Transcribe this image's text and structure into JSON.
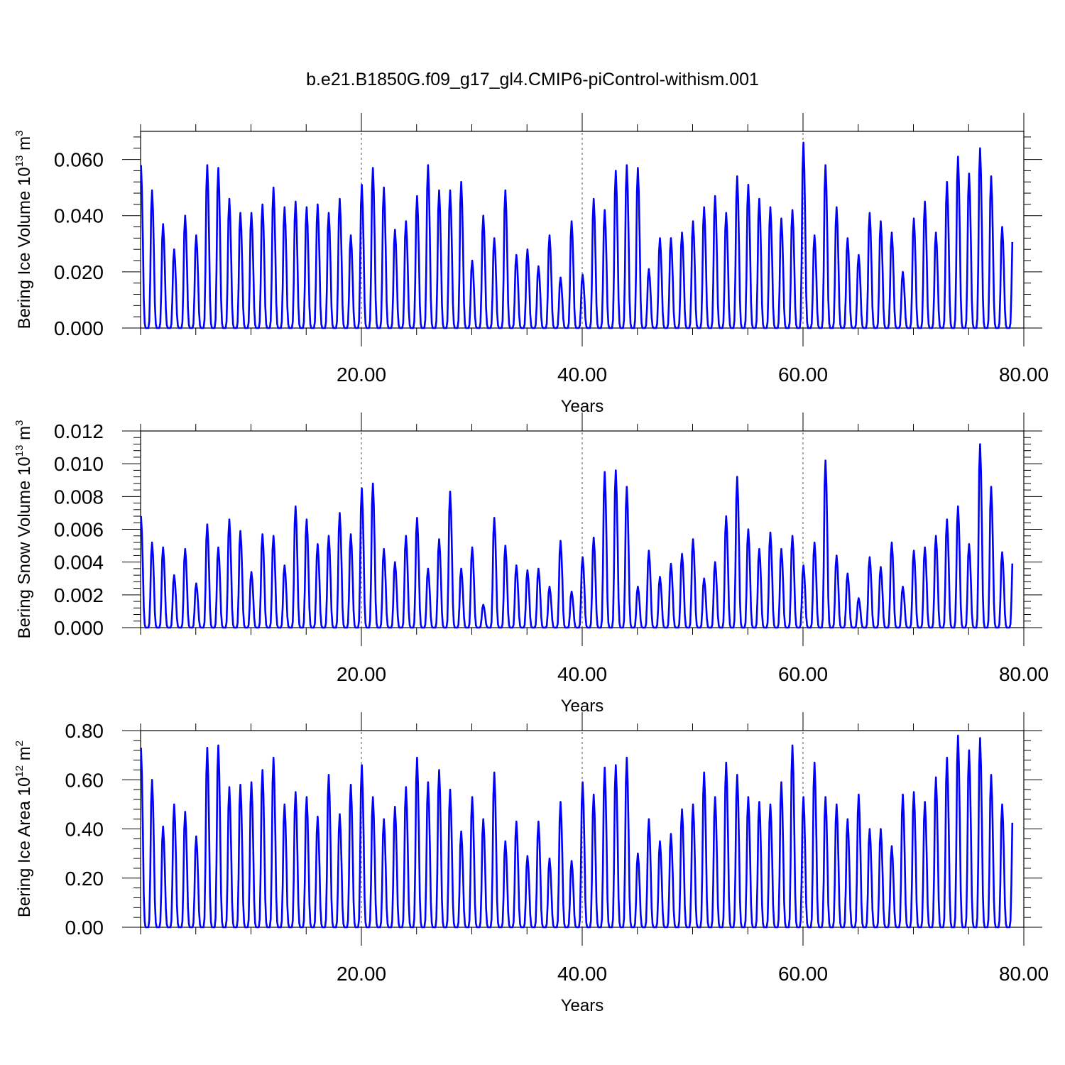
{
  "figure": {
    "title": "b.e21.B1850G.f09_g17_gl4.CMIP6-piControl-withism.001"
  },
  "colors": {
    "line": "#0000ff",
    "frame": "#000000",
    "refline": "#555555"
  },
  "chart_data": [
    {
      "type": "line",
      "ylabel_main": "Bering Ice Volume 10",
      "ylabel_exp": "13",
      "ylabel_unit": " m",
      "ylabel_unit_exp": "3",
      "xlabel": "Years",
      "xlim": [
        0,
        80
      ],
      "ylim": [
        0,
        0.07
      ],
      "xticks": [
        20,
        40,
        60,
        80
      ],
      "xtick_labels": [
        "20.00",
        "40.00",
        "60.00",
        "80.00"
      ],
      "yticks": [
        0,
        0.02,
        0.04,
        0.06
      ],
      "ytick_labels": [
        "0.000",
        "0.020",
        "0.040",
        "0.060"
      ],
      "x_reference_lines": [
        20,
        40,
        60
      ],
      "grid": false,
      "series": [
        {
          "peaks": [
            0.058,
            0.049,
            0.037,
            0.028,
            0.04,
            0.033,
            0.058,
            0.057,
            0.046,
            0.041,
            0.041,
            0.044,
            0.05,
            0.043,
            0.045,
            0.043,
            0.044,
            0.041,
            0.046,
            0.033,
            0.051,
            0.057,
            0.05,
            0.035,
            0.038,
            0.047,
            0.058,
            0.049,
            0.049,
            0.052,
            0.024,
            0.04,
            0.032,
            0.049,
            0.026,
            0.028,
            0.022,
            0.033,
            0.018,
            0.038,
            0.019,
            0.046,
            0.042,
            0.056,
            0.058,
            0.057,
            0.021,
            0.032,
            0.032,
            0.034,
            0.038,
            0.043,
            0.047,
            0.041,
            0.054,
            0.051,
            0.046,
            0.043,
            0.039,
            0.042,
            0.066,
            0.033,
            0.058,
            0.043,
            0.032,
            0.026,
            0.041,
            0.038,
            0.034,
            0.02,
            0.039,
            0.045,
            0.034,
            0.052,
            0.061,
            0.055,
            0.064,
            0.054,
            0.036
          ]
        }
      ]
    },
    {
      "type": "line",
      "ylabel_main": "Bering Snow Volume 10",
      "ylabel_exp": "13",
      "ylabel_unit": " m",
      "ylabel_unit_exp": "3",
      "xlabel": "Years",
      "xlim": [
        0,
        80
      ],
      "ylim": [
        0,
        0.012
      ],
      "xticks": [
        20,
        40,
        60,
        80
      ],
      "xtick_labels": [
        "20.00",
        "40.00",
        "60.00",
        "80.00"
      ],
      "yticks": [
        0,
        0.002,
        0.004,
        0.006,
        0.008,
        0.01,
        0.012
      ],
      "ytick_labels": [
        "0.000",
        "0.002",
        "0.004",
        "0.006",
        "0.008",
        "0.010",
        "0.012"
      ],
      "x_reference_lines": [
        20,
        40,
        60
      ],
      "grid": false,
      "series": [
        {
          "peaks": [
            0.0068,
            0.0052,
            0.0049,
            0.0032,
            0.0048,
            0.0027,
            0.0063,
            0.0049,
            0.0066,
            0.0059,
            0.0034,
            0.0057,
            0.0056,
            0.0038,
            0.0074,
            0.0066,
            0.0051,
            0.0056,
            0.007,
            0.0057,
            0.0085,
            0.0088,
            0.0048,
            0.004,
            0.0056,
            0.0067,
            0.0036,
            0.0054,
            0.0083,
            0.0036,
            0.0049,
            0.0014,
            0.0067,
            0.005,
            0.0038,
            0.0035,
            0.0036,
            0.0025,
            0.0053,
            0.0022,
            0.0043,
            0.0055,
            0.0095,
            0.0096,
            0.0086,
            0.0025,
            0.0047,
            0.0031,
            0.0039,
            0.0045,
            0.0054,
            0.003,
            0.004,
            0.0068,
            0.0092,
            0.006,
            0.0048,
            0.0058,
            0.0048,
            0.0056,
            0.0038,
            0.0052,
            0.0102,
            0.0044,
            0.0033,
            0.0018,
            0.0043,
            0.0037,
            0.0052,
            0.0025,
            0.0047,
            0.0049,
            0.0056,
            0.0066,
            0.0074,
            0.0051,
            0.0112,
            0.0086,
            0.0046
          ]
        }
      ]
    },
    {
      "type": "line",
      "ylabel_main": "Bering Ice Area 10",
      "ylabel_exp": "12",
      "ylabel_unit": " m",
      "ylabel_unit_exp": "2",
      "xlabel": "Years",
      "xlim": [
        0,
        80
      ],
      "ylim": [
        0,
        0.8
      ],
      "xticks": [
        20,
        40,
        60,
        80
      ],
      "xtick_labels": [
        "20.00",
        "40.00",
        "60.00",
        "80.00"
      ],
      "yticks": [
        0,
        0.2,
        0.4,
        0.6,
        0.8
      ],
      "ytick_labels": [
        "0.00",
        "0.20",
        "0.40",
        "0.60",
        "0.80"
      ],
      "x_reference_lines": [
        20,
        40,
        60
      ],
      "grid": false,
      "series": [
        {
          "peaks": [
            0.73,
            0.6,
            0.41,
            0.5,
            0.47,
            0.37,
            0.73,
            0.74,
            0.57,
            0.58,
            0.59,
            0.64,
            0.69,
            0.5,
            0.55,
            0.53,
            0.45,
            0.62,
            0.46,
            0.58,
            0.66,
            0.53,
            0.44,
            0.49,
            0.57,
            0.69,
            0.59,
            0.64,
            0.56,
            0.39,
            0.53,
            0.44,
            0.63,
            0.35,
            0.43,
            0.29,
            0.43,
            0.28,
            0.51,
            0.27,
            0.59,
            0.54,
            0.65,
            0.66,
            0.69,
            0.3,
            0.44,
            0.35,
            0.38,
            0.48,
            0.5,
            0.63,
            0.53,
            0.67,
            0.62,
            0.53,
            0.51,
            0.5,
            0.59,
            0.74,
            0.53,
            0.67,
            0.53,
            0.5,
            0.44,
            0.54,
            0.4,
            0.4,
            0.33,
            0.54,
            0.55,
            0.51,
            0.61,
            0.69,
            0.78,
            0.72,
            0.77,
            0.62,
            0.5
          ]
        }
      ]
    }
  ]
}
